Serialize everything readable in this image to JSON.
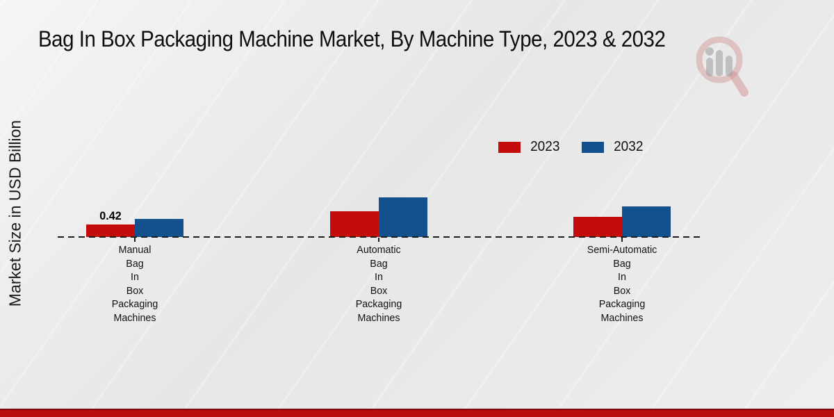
{
  "page": {
    "background_color": "#e9e9e9",
    "bottom_bar_color": "#b80d0d",
    "watermark": "magnifier-bar-chart-logo"
  },
  "chart_data": {
    "type": "bar",
    "title": "Bag In Box Packaging Machine Market, By Machine Type, 2023 & 2032",
    "ylabel": "Market Size in USD Billion",
    "xlabel": "",
    "categories": [
      [
        "Manual",
        "Bag",
        "In",
        "Box",
        "Packaging",
        "Machines"
      ],
      [
        "Automatic",
        "Bag",
        "In",
        "Box",
        "Packaging",
        "Machines"
      ],
      [
        "Semi-Automatic",
        "Bag",
        "In",
        "Box",
        "Packaging",
        "Machines"
      ]
    ],
    "series": [
      {
        "name": "2023",
        "color": "#c40c0c",
        "values": [
          0.42,
          0.85,
          0.68
        ],
        "data_labels": [
          "0.42",
          null,
          null
        ]
      },
      {
        "name": "2032",
        "color": "#13508c",
        "values": [
          0.61,
          1.33,
          1.03
        ],
        "data_labels": [
          null,
          null,
          null
        ]
      }
    ],
    "ylim": [
      0,
      1.6
    ],
    "grid": "dashed baseline only",
    "legend_position": "top-right",
    "baseline_dashed": true
  }
}
